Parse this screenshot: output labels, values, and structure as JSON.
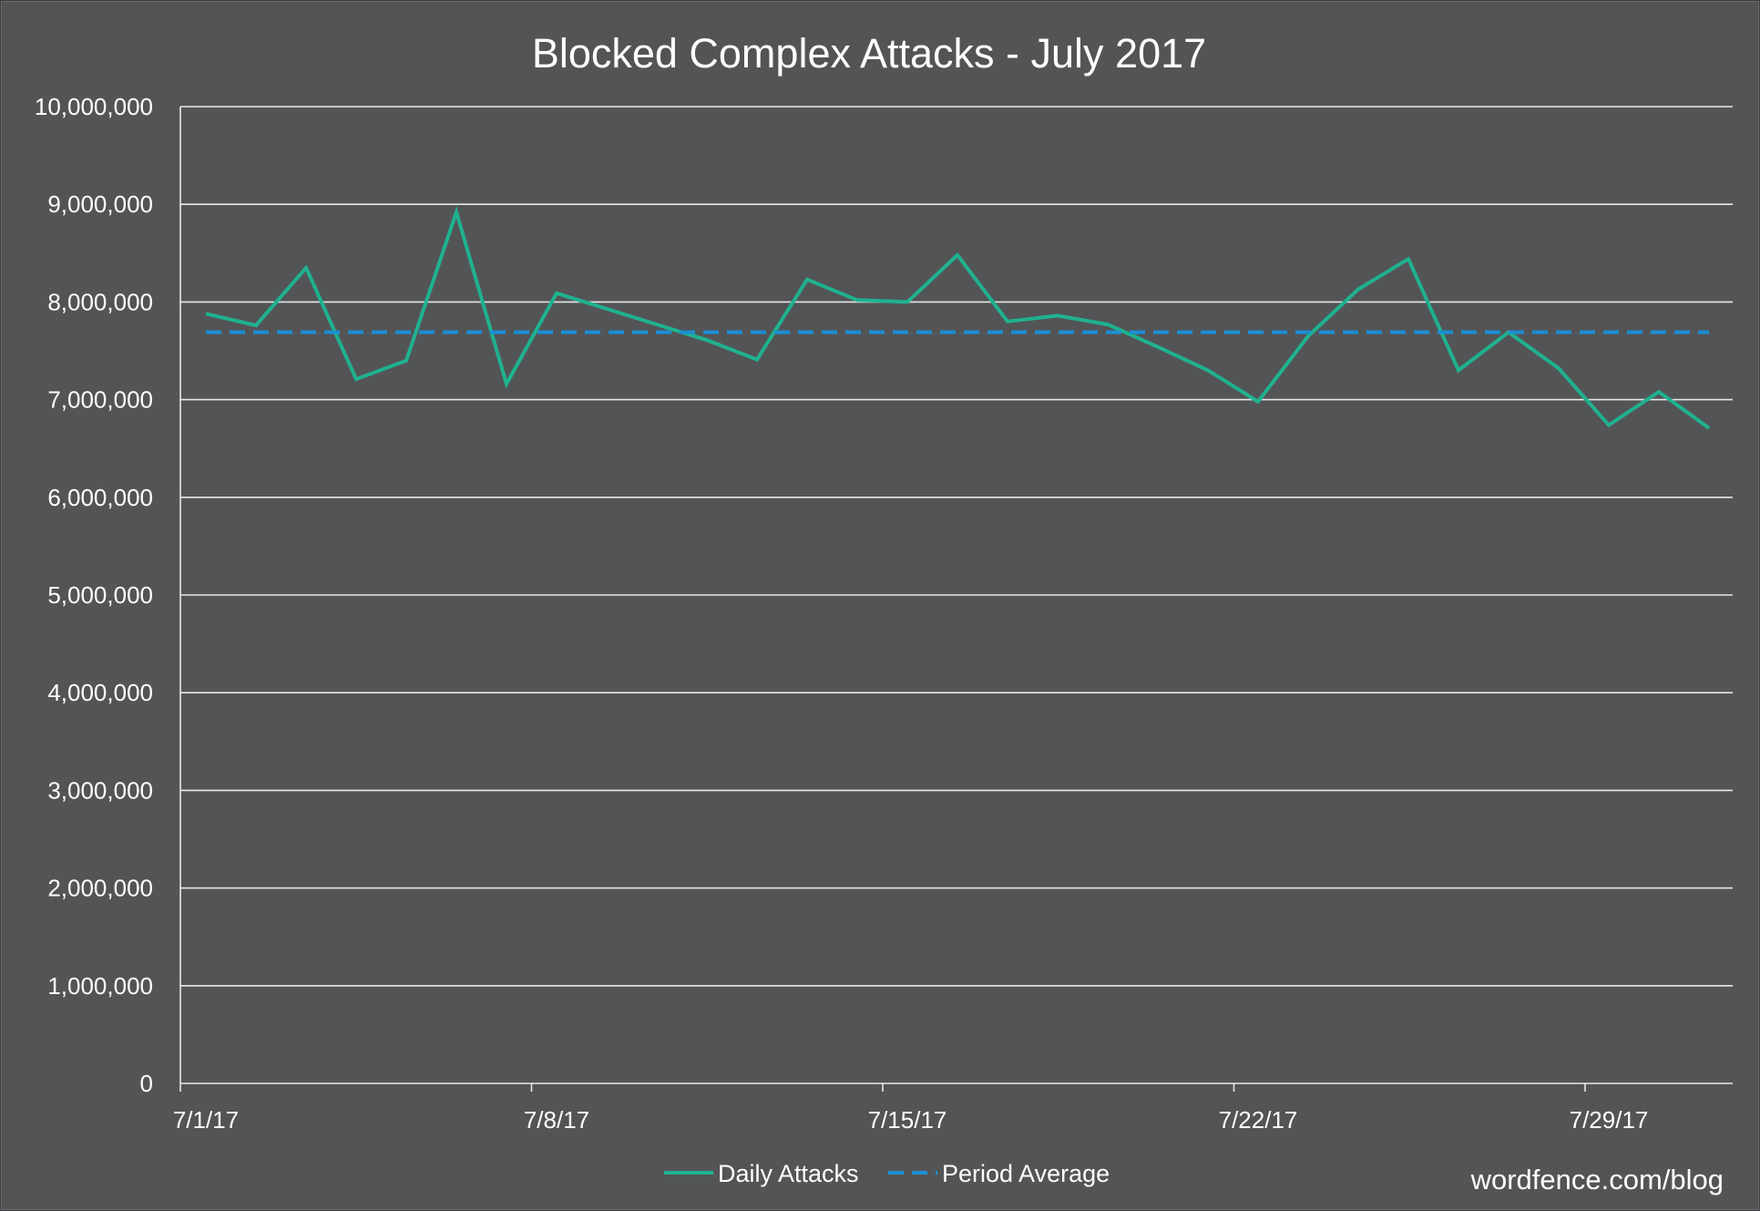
{
  "chart_data": {
    "type": "line",
    "title": "Blocked Complex Attacks - July 2017",
    "xlabel": "",
    "ylabel": "",
    "x": [
      "7/1/17",
      "7/2/17",
      "7/3/17",
      "7/4/17",
      "7/5/17",
      "7/6/17",
      "7/7/17",
      "7/8/17",
      "7/9/17",
      "7/10/17",
      "7/11/17",
      "7/12/17",
      "7/13/17",
      "7/14/17",
      "7/15/17",
      "7/16/17",
      "7/17/17",
      "7/18/17",
      "7/19/17",
      "7/20/17",
      "7/21/17",
      "7/22/17",
      "7/23/17",
      "7/24/17",
      "7/25/17",
      "7/26/17",
      "7/27/17",
      "7/28/17",
      "7/29/17",
      "7/30/17",
      "7/31/17"
    ],
    "series": [
      {
        "name": "Daily Attacks",
        "color": "#1fb28f",
        "style": "solid",
        "values": [
          7880000,
          7760000,
          8350000,
          7210000,
          7400000,
          8920000,
          7160000,
          8090000,
          7930000,
          7770000,
          7610000,
          7410000,
          8230000,
          8020000,
          8000000,
          8480000,
          7800000,
          7860000,
          7770000,
          7540000,
          7300000,
          6980000,
          7650000,
          8130000,
          8440000,
          7300000,
          7690000,
          7320000,
          6740000,
          7080000,
          6710000
        ]
      },
      {
        "name": "Period Average",
        "color": "#1c8fd3",
        "style": "dashed",
        "values": [
          7690000,
          7690000,
          7690000,
          7690000,
          7690000,
          7690000,
          7690000,
          7690000,
          7690000,
          7690000,
          7690000,
          7690000,
          7690000,
          7690000,
          7690000,
          7690000,
          7690000,
          7690000,
          7690000,
          7690000,
          7690000,
          7690000,
          7690000,
          7690000,
          7690000,
          7690000,
          7690000,
          7690000,
          7690000,
          7690000,
          7690000
        ]
      }
    ],
    "ylim": [
      0,
      10000000
    ],
    "y_ticks": [
      "0",
      "1,000,000",
      "2,000,000",
      "3,000,000",
      "4,000,000",
      "5,000,000",
      "6,000,000",
      "7,000,000",
      "8,000,000",
      "9,000,000",
      "10,000,000"
    ],
    "x_tick_labels": [
      "7/1/17",
      "7/8/17",
      "7/15/17",
      "7/22/17",
      "7/29/17"
    ],
    "grid": true,
    "legend_position": "bottom"
  },
  "watermark": "wordfence.com/blog",
  "colors": {
    "background": "#535456",
    "grid": "#e8e8e8",
    "text": "#ffffff"
  }
}
